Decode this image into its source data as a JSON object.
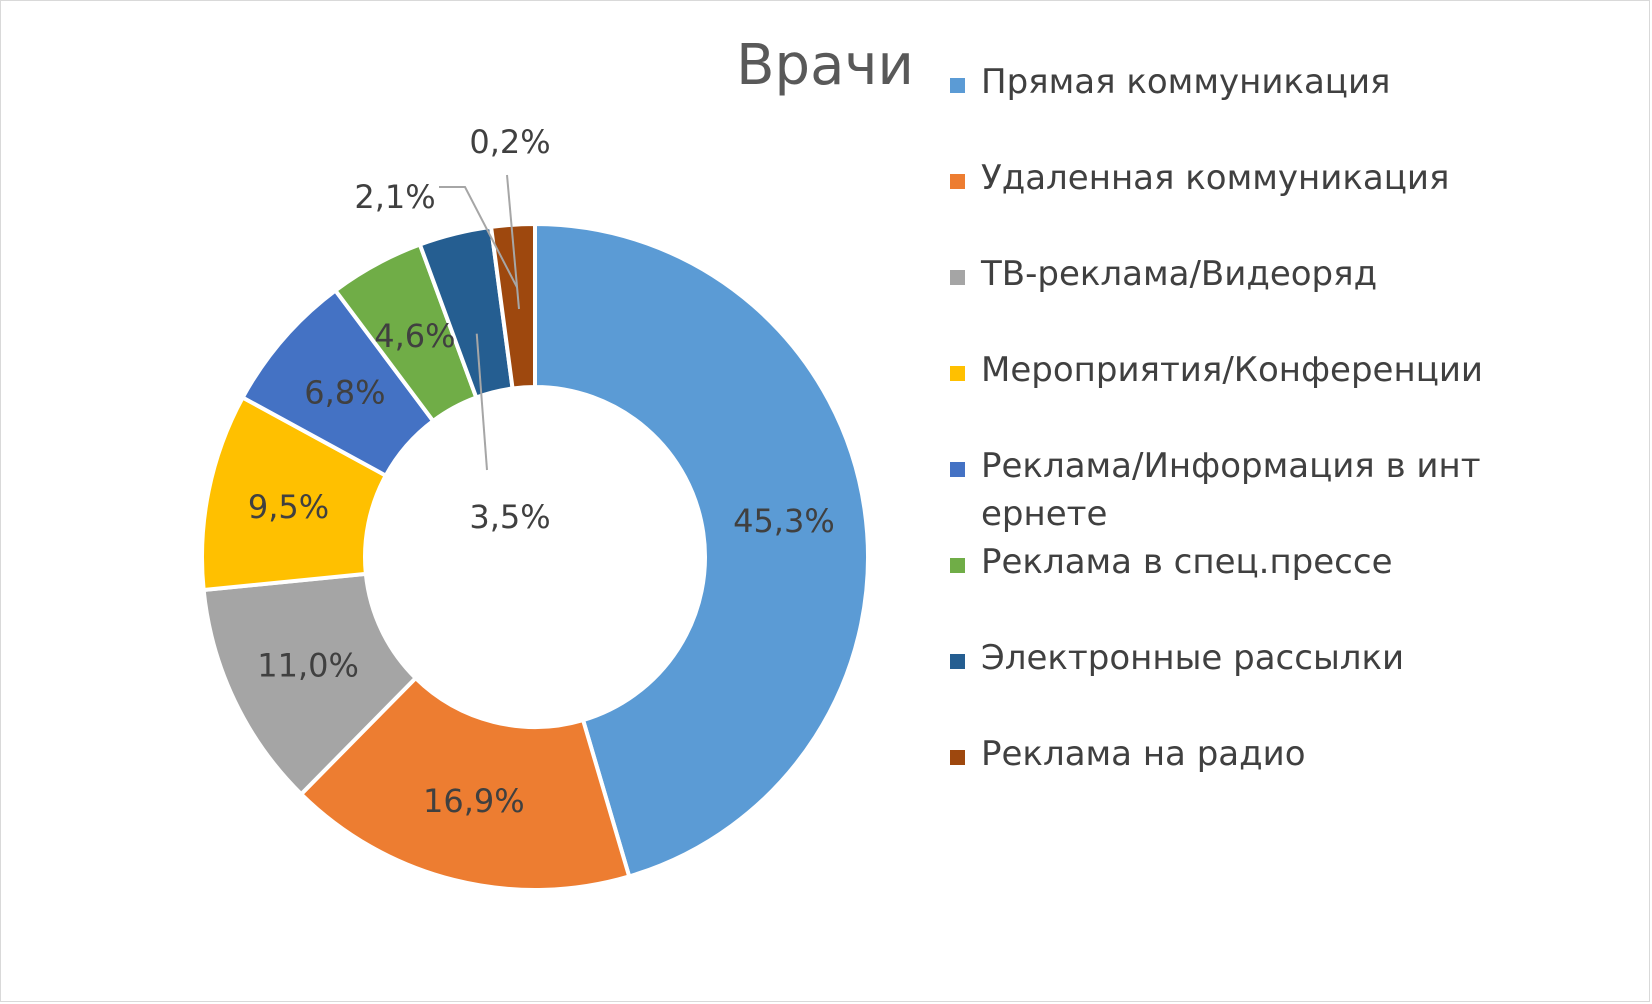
{
  "chart_data": {
    "type": "pie",
    "variant": "doughnut",
    "title": "Врачи",
    "legend_position": "right",
    "categories": [
      "Прямая коммуникация",
      "Удаленная коммуникация",
      "ТВ-реклама/Видеоряд",
      "Мероприятия/Конференции",
      "Реклама/Информация в интернете",
      "Реклама в спец.прессе",
      "Электронные рассылки",
      "Реклама на радио"
    ],
    "values": [
      45.3,
      16.9,
      11.0,
      9.5,
      6.8,
      4.6,
      3.5,
      2.1
    ],
    "labels": [
      "45,3%",
      "16,9%",
      "11,0%",
      "9,5%",
      "6,8%",
      "4,6%",
      "3,5%",
      "2,1%"
    ],
    "extra_label": "0,2%",
    "colors": [
      "#5b9bd5",
      "#ed7d31",
      "#a5a5a5",
      "#ffc000",
      "#4472c4",
      "#70ad47",
      "#255e91",
      "#9e480e"
    ]
  }
}
